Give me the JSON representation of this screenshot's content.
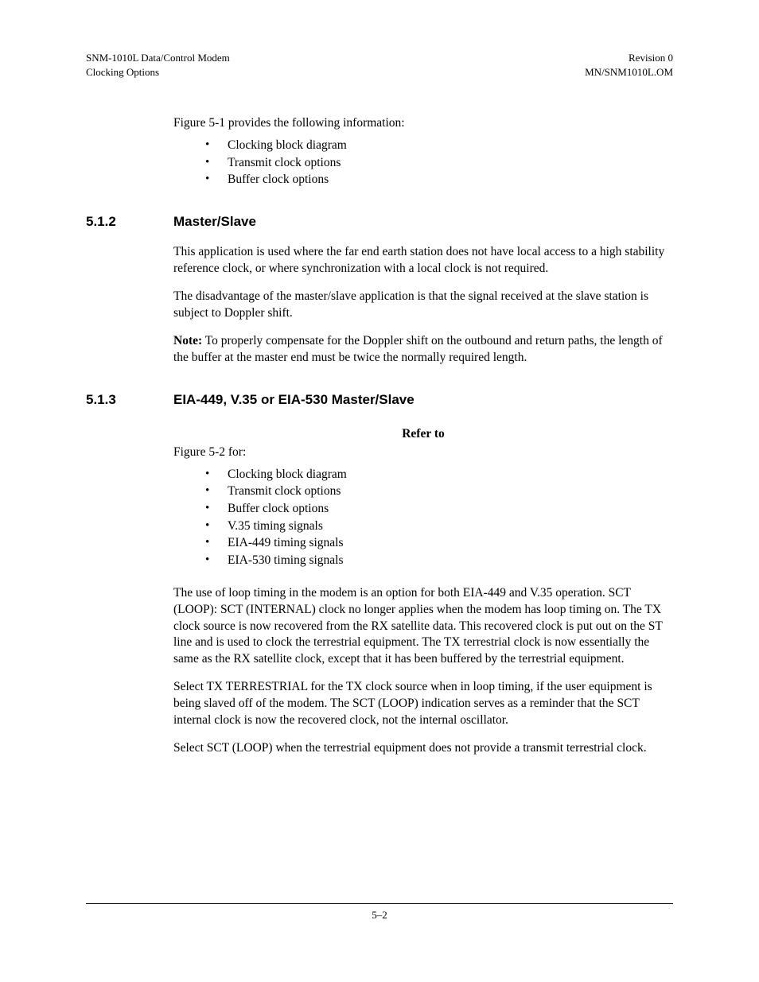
{
  "header": {
    "left_line1": "SNM-1010L Data/Control Modem",
    "left_line2": "Clocking Options",
    "right_line1": "Revision 0",
    "right_line2": "MN/SNM1010L.OM"
  },
  "intro": {
    "para1": "Figure 5-1 provides the following information:",
    "bullets": [
      "Clocking block diagram",
      "Transmit clock options",
      "Buffer clock options"
    ]
  },
  "section_512": {
    "number": "5.1.2",
    "title": "Master/Slave",
    "para1": "This application is used where the far end earth station does not have local access to a high stability reference clock, or where synchronization with a local clock is not required.",
    "para2": "The disadvantage of the master/slave application is that the signal received at the slave station is subject to Doppler shift.",
    "note_label": "Note:",
    "note_text": " To properly compensate for the Doppler shift on the outbound and return paths, the length of the buffer at the master end must be twice the normally required length."
  },
  "section_513": {
    "number": "5.1.3",
    "title": "EIA-449, V.35 or EIA-530 Master/Slave",
    "refer_to": "Refer to",
    "fig_ref": "Figure 5-2 for:",
    "bullets": [
      "Clocking block diagram",
      "Transmit clock options",
      "Buffer clock options",
      "V.35 timing signals",
      "EIA-449 timing signals",
      "EIA-530 timing signals"
    ],
    "para1": "The use of loop timing in the modem is an option for both EIA-449 and V.35 operation. SCT (LOOP): SCT (INTERNAL) clock no longer applies when the modem has loop timing on. The TX clock source is now recovered from the RX satellite data. This recovered clock is put out on the ST line and is used to clock the terrestrial equipment. The TX terrestrial clock is now essentially the same as the RX satellite clock, except that it has been buffered by the terrestrial equipment.",
    "para2": "Select TX TERRESTRIAL for the TX clock source when in loop timing, if the user equipment is being slaved off of the modem. The SCT (LOOP) indication serves as a reminder that the SCT internal clock is now the recovered clock, not the internal oscillator.",
    "para3": "Select SCT (LOOP) when the terrestrial equipment does not provide a transmit terrestrial clock."
  },
  "footer": {
    "page_number": "5–2"
  },
  "style": {
    "background_color": "#ffffff",
    "text_color": "#000000",
    "body_font": "Times New Roman",
    "heading_font": "Arial",
    "body_fontsize": 15.5,
    "header_fontsize": 13,
    "heading_fontsize": 17,
    "footer_fontsize": 13
  }
}
